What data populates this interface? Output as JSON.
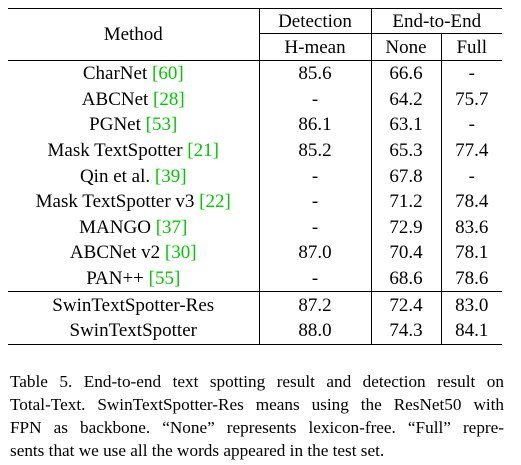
{
  "table": {
    "header": {
      "method": "Method",
      "detection": "Detection",
      "end_to_end": "End-to-End",
      "hmean": "H-mean",
      "none": "None",
      "full": "Full"
    },
    "rows": [
      {
        "method": "CharNet",
        "cite": "60",
        "hmean": "85.6",
        "none": "66.6",
        "full": "-"
      },
      {
        "method": "ABCNet",
        "cite": "28",
        "hmean": "-",
        "none": "64.2",
        "full": "75.7"
      },
      {
        "method": "PGNet",
        "cite": "53",
        "hmean": "86.1",
        "none": "63.1",
        "full": "-"
      },
      {
        "method": "Mask TextSpotter",
        "cite": "21",
        "hmean": "85.2",
        "none": "65.3",
        "full": "77.4"
      },
      {
        "method": "Qin et al.",
        "cite": "39",
        "hmean": "-",
        "none": "67.8",
        "full": "-"
      },
      {
        "method": "Mask TextSpotter v3",
        "cite": "22",
        "hmean": "-",
        "none": "71.2",
        "full": "78.4"
      },
      {
        "method": "MANGO",
        "cite": "37",
        "hmean": "-",
        "none": "72.9",
        "full": "83.6"
      },
      {
        "method": "ABCNet v2",
        "cite": "30",
        "hmean": "87.0",
        "none": "70.4",
        "full": "78.1"
      },
      {
        "method": "PAN++",
        "cite": "55",
        "hmean": "-",
        "none": "68.6",
        "full": "78.6"
      }
    ],
    "ours": [
      {
        "method": "SwinTextSpotter-Res",
        "hmean": "87.2",
        "none": "72.4",
        "full": "83.0"
      },
      {
        "method": "SwinTextSpotter",
        "hmean": "88.0",
        "none": "74.3",
        "full": "84.1"
      }
    ]
  },
  "caption": {
    "lines": [
      "Table 5.  End-to-end text spotting result and detection result on",
      "Total-Text. SwinTextSpotter-Res means using the ResNet50 with",
      "FPN as backbone. “None” represents lexicon-free. “Full” repre-",
      "sents that we use all the words appeared in the test set."
    ]
  },
  "colors": {
    "citation": "#00c800",
    "text": "#000000"
  }
}
